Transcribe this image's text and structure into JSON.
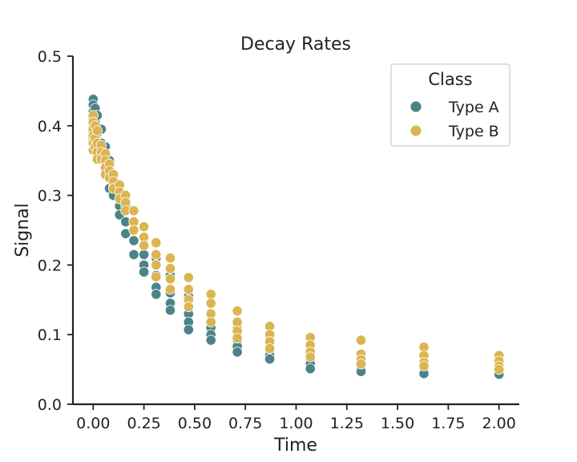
{
  "chart_data": {
    "type": "scatter",
    "title": "Decay Rates",
    "xlabel": "Time",
    "ylabel": "Signal",
    "xlim": [
      -0.1,
      2.1
    ],
    "ylim": [
      0,
      0.5
    ],
    "xticks": [
      0.0,
      0.25,
      0.5,
      0.75,
      1.0,
      1.25,
      1.5,
      1.75,
      2.0
    ],
    "xtick_labels": [
      "0.00",
      "0.25",
      "0.50",
      "0.75",
      "1.00",
      "1.25",
      "1.50",
      "1.75",
      "2.00"
    ],
    "yticks": [
      0.0,
      0.1,
      0.2,
      0.3,
      0.4,
      0.5
    ],
    "ytick_labels": [
      "0.0",
      "0.1",
      "0.2",
      "0.3",
      "0.4",
      "0.5"
    ],
    "grid": false,
    "legend": {
      "title": "Class",
      "position": "top-right"
    },
    "series": [
      {
        "name": "Type A",
        "color": "#4b8388",
        "points": [
          [
            0.0,
            0.438
          ],
          [
            0.0,
            0.43
          ],
          [
            0.0,
            0.42
          ],
          [
            0.0,
            0.41
          ],
          [
            0.0,
            0.4
          ],
          [
            0.0,
            0.39
          ],
          [
            0.0,
            0.38
          ],
          [
            0.01,
            0.425
          ],
          [
            0.01,
            0.405
          ],
          [
            0.01,
            0.385
          ],
          [
            0.01,
            0.372
          ],
          [
            0.02,
            0.415
          ],
          [
            0.02,
            0.39
          ],
          [
            0.02,
            0.37
          ],
          [
            0.04,
            0.395
          ],
          [
            0.04,
            0.375
          ],
          [
            0.04,
            0.355
          ],
          [
            0.06,
            0.37
          ],
          [
            0.06,
            0.35
          ],
          [
            0.06,
            0.338
          ],
          [
            0.08,
            0.35
          ],
          [
            0.08,
            0.33
          ],
          [
            0.08,
            0.31
          ],
          [
            0.1,
            0.33
          ],
          [
            0.1,
            0.312
          ],
          [
            0.1,
            0.3
          ],
          [
            0.13,
            0.305
          ],
          [
            0.13,
            0.285
          ],
          [
            0.13,
            0.272
          ],
          [
            0.16,
            0.285
          ],
          [
            0.16,
            0.262
          ],
          [
            0.16,
            0.245
          ],
          [
            0.2,
            0.262
          ],
          [
            0.2,
            0.235
          ],
          [
            0.2,
            0.215
          ],
          [
            0.25,
            0.24
          ],
          [
            0.25,
            0.215
          ],
          [
            0.25,
            0.2
          ],
          [
            0.25,
            0.19
          ],
          [
            0.31,
            0.21
          ],
          [
            0.31,
            0.185
          ],
          [
            0.31,
            0.168
          ],
          [
            0.31,
            0.158
          ],
          [
            0.38,
            0.185
          ],
          [
            0.38,
            0.16
          ],
          [
            0.38,
            0.145
          ],
          [
            0.38,
            0.135
          ],
          [
            0.47,
            0.155
          ],
          [
            0.47,
            0.13
          ],
          [
            0.47,
            0.118
          ],
          [
            0.47,
            0.107
          ],
          [
            0.58,
            0.13
          ],
          [
            0.58,
            0.11
          ],
          [
            0.58,
            0.1
          ],
          [
            0.58,
            0.092
          ],
          [
            0.71,
            0.108
          ],
          [
            0.71,
            0.092
          ],
          [
            0.71,
            0.083
          ],
          [
            0.71,
            0.075
          ],
          [
            0.87,
            0.09
          ],
          [
            0.87,
            0.078
          ],
          [
            0.87,
            0.07
          ],
          [
            0.87,
            0.065
          ],
          [
            1.07,
            0.075
          ],
          [
            1.07,
            0.065
          ],
          [
            1.07,
            0.058
          ],
          [
            1.07,
            0.051
          ],
          [
            1.32,
            0.062
          ],
          [
            1.32,
            0.055
          ],
          [
            1.32,
            0.05
          ],
          [
            1.32,
            0.047
          ],
          [
            1.63,
            0.055
          ],
          [
            1.63,
            0.05
          ],
          [
            1.63,
            0.046
          ],
          [
            1.63,
            0.044
          ],
          [
            2.0,
            0.052
          ],
          [
            2.0,
            0.048
          ],
          [
            2.0,
            0.045
          ],
          [
            2.0,
            0.043
          ]
        ]
      },
      {
        "name": "Type B",
        "color": "#dbb552",
        "points": [
          [
            0.0,
            0.415
          ],
          [
            0.0,
            0.405
          ],
          [
            0.0,
            0.395
          ],
          [
            0.0,
            0.385
          ],
          [
            0.0,
            0.375
          ],
          [
            0.0,
            0.365
          ],
          [
            0.01,
            0.4
          ],
          [
            0.01,
            0.382
          ],
          [
            0.01,
            0.37
          ],
          [
            0.02,
            0.393
          ],
          [
            0.02,
            0.375
          ],
          [
            0.02,
            0.362
          ],
          [
            0.02,
            0.352
          ],
          [
            0.04,
            0.372
          ],
          [
            0.04,
            0.362
          ],
          [
            0.04,
            0.352
          ],
          [
            0.06,
            0.36
          ],
          [
            0.06,
            0.35
          ],
          [
            0.06,
            0.34
          ],
          [
            0.06,
            0.33
          ],
          [
            0.08,
            0.345
          ],
          [
            0.08,
            0.335
          ],
          [
            0.08,
            0.325
          ],
          [
            0.1,
            0.33
          ],
          [
            0.1,
            0.32
          ],
          [
            0.1,
            0.31
          ],
          [
            0.13,
            0.315
          ],
          [
            0.13,
            0.305
          ],
          [
            0.13,
            0.295
          ],
          [
            0.16,
            0.3
          ],
          [
            0.16,
            0.29
          ],
          [
            0.16,
            0.278
          ],
          [
            0.2,
            0.278
          ],
          [
            0.2,
            0.262
          ],
          [
            0.2,
            0.25
          ],
          [
            0.25,
            0.255
          ],
          [
            0.25,
            0.24
          ],
          [
            0.25,
            0.228
          ],
          [
            0.31,
            0.232
          ],
          [
            0.31,
            0.215
          ],
          [
            0.31,
            0.2
          ],
          [
            0.31,
            0.183
          ],
          [
            0.38,
            0.21
          ],
          [
            0.38,
            0.195
          ],
          [
            0.38,
            0.18
          ],
          [
            0.38,
            0.165
          ],
          [
            0.47,
            0.182
          ],
          [
            0.47,
            0.165
          ],
          [
            0.47,
            0.15
          ],
          [
            0.47,
            0.14
          ],
          [
            0.58,
            0.158
          ],
          [
            0.58,
            0.145
          ],
          [
            0.58,
            0.13
          ],
          [
            0.58,
            0.118
          ],
          [
            0.71,
            0.134
          ],
          [
            0.71,
            0.118
          ],
          [
            0.71,
            0.105
          ],
          [
            0.71,
            0.095
          ],
          [
            0.87,
            0.112
          ],
          [
            0.87,
            0.1
          ],
          [
            0.87,
            0.09
          ],
          [
            0.87,
            0.08
          ],
          [
            1.07,
            0.096
          ],
          [
            1.07,
            0.085
          ],
          [
            1.07,
            0.075
          ],
          [
            1.07,
            0.068
          ],
          [
            1.32,
            0.092
          ],
          [
            1.32,
            0.072
          ],
          [
            1.32,
            0.064
          ],
          [
            1.32,
            0.058
          ],
          [
            1.63,
            0.082
          ],
          [
            1.63,
            0.07
          ],
          [
            1.63,
            0.06
          ],
          [
            1.63,
            0.055
          ],
          [
            2.0,
            0.07
          ],
          [
            2.0,
            0.062
          ],
          [
            2.0,
            0.055
          ],
          [
            2.0,
            0.05
          ]
        ]
      }
    ]
  }
}
